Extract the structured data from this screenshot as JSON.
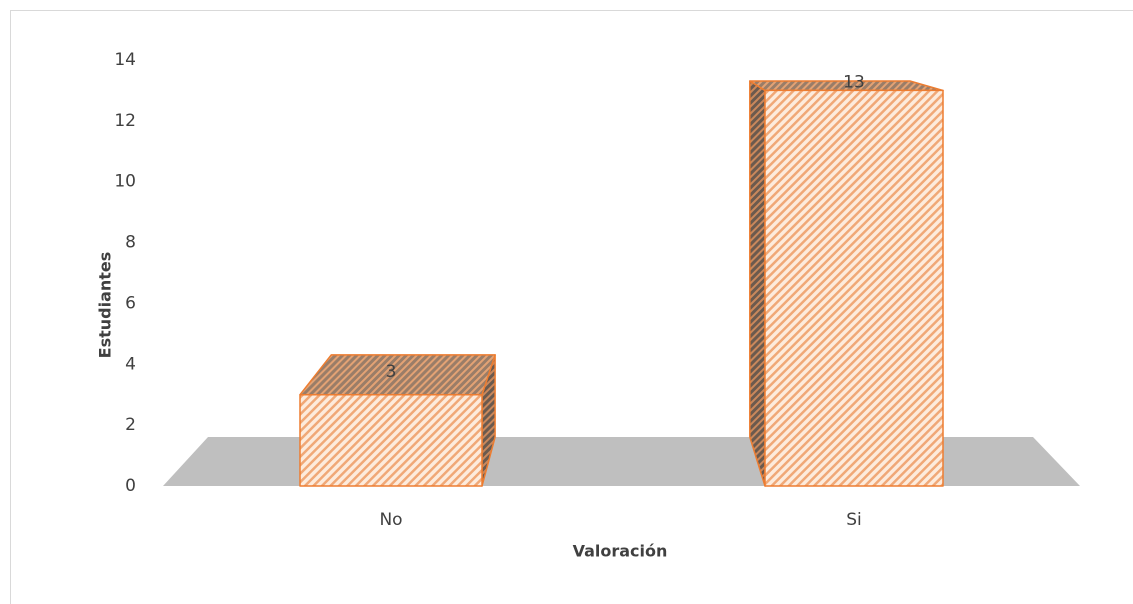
{
  "chart_data": {
    "type": "bar3d",
    "x_label": "Valoración",
    "y_label": "Estudiantes",
    "categories": [
      "No",
      "Si"
    ],
    "values": [
      3,
      13
    ],
    "color": "#ed7d31",
    "ylim": [
      0,
      14
    ],
    "yticks": [
      0,
      2,
      4,
      6,
      8,
      10,
      12,
      14
    ]
  }
}
